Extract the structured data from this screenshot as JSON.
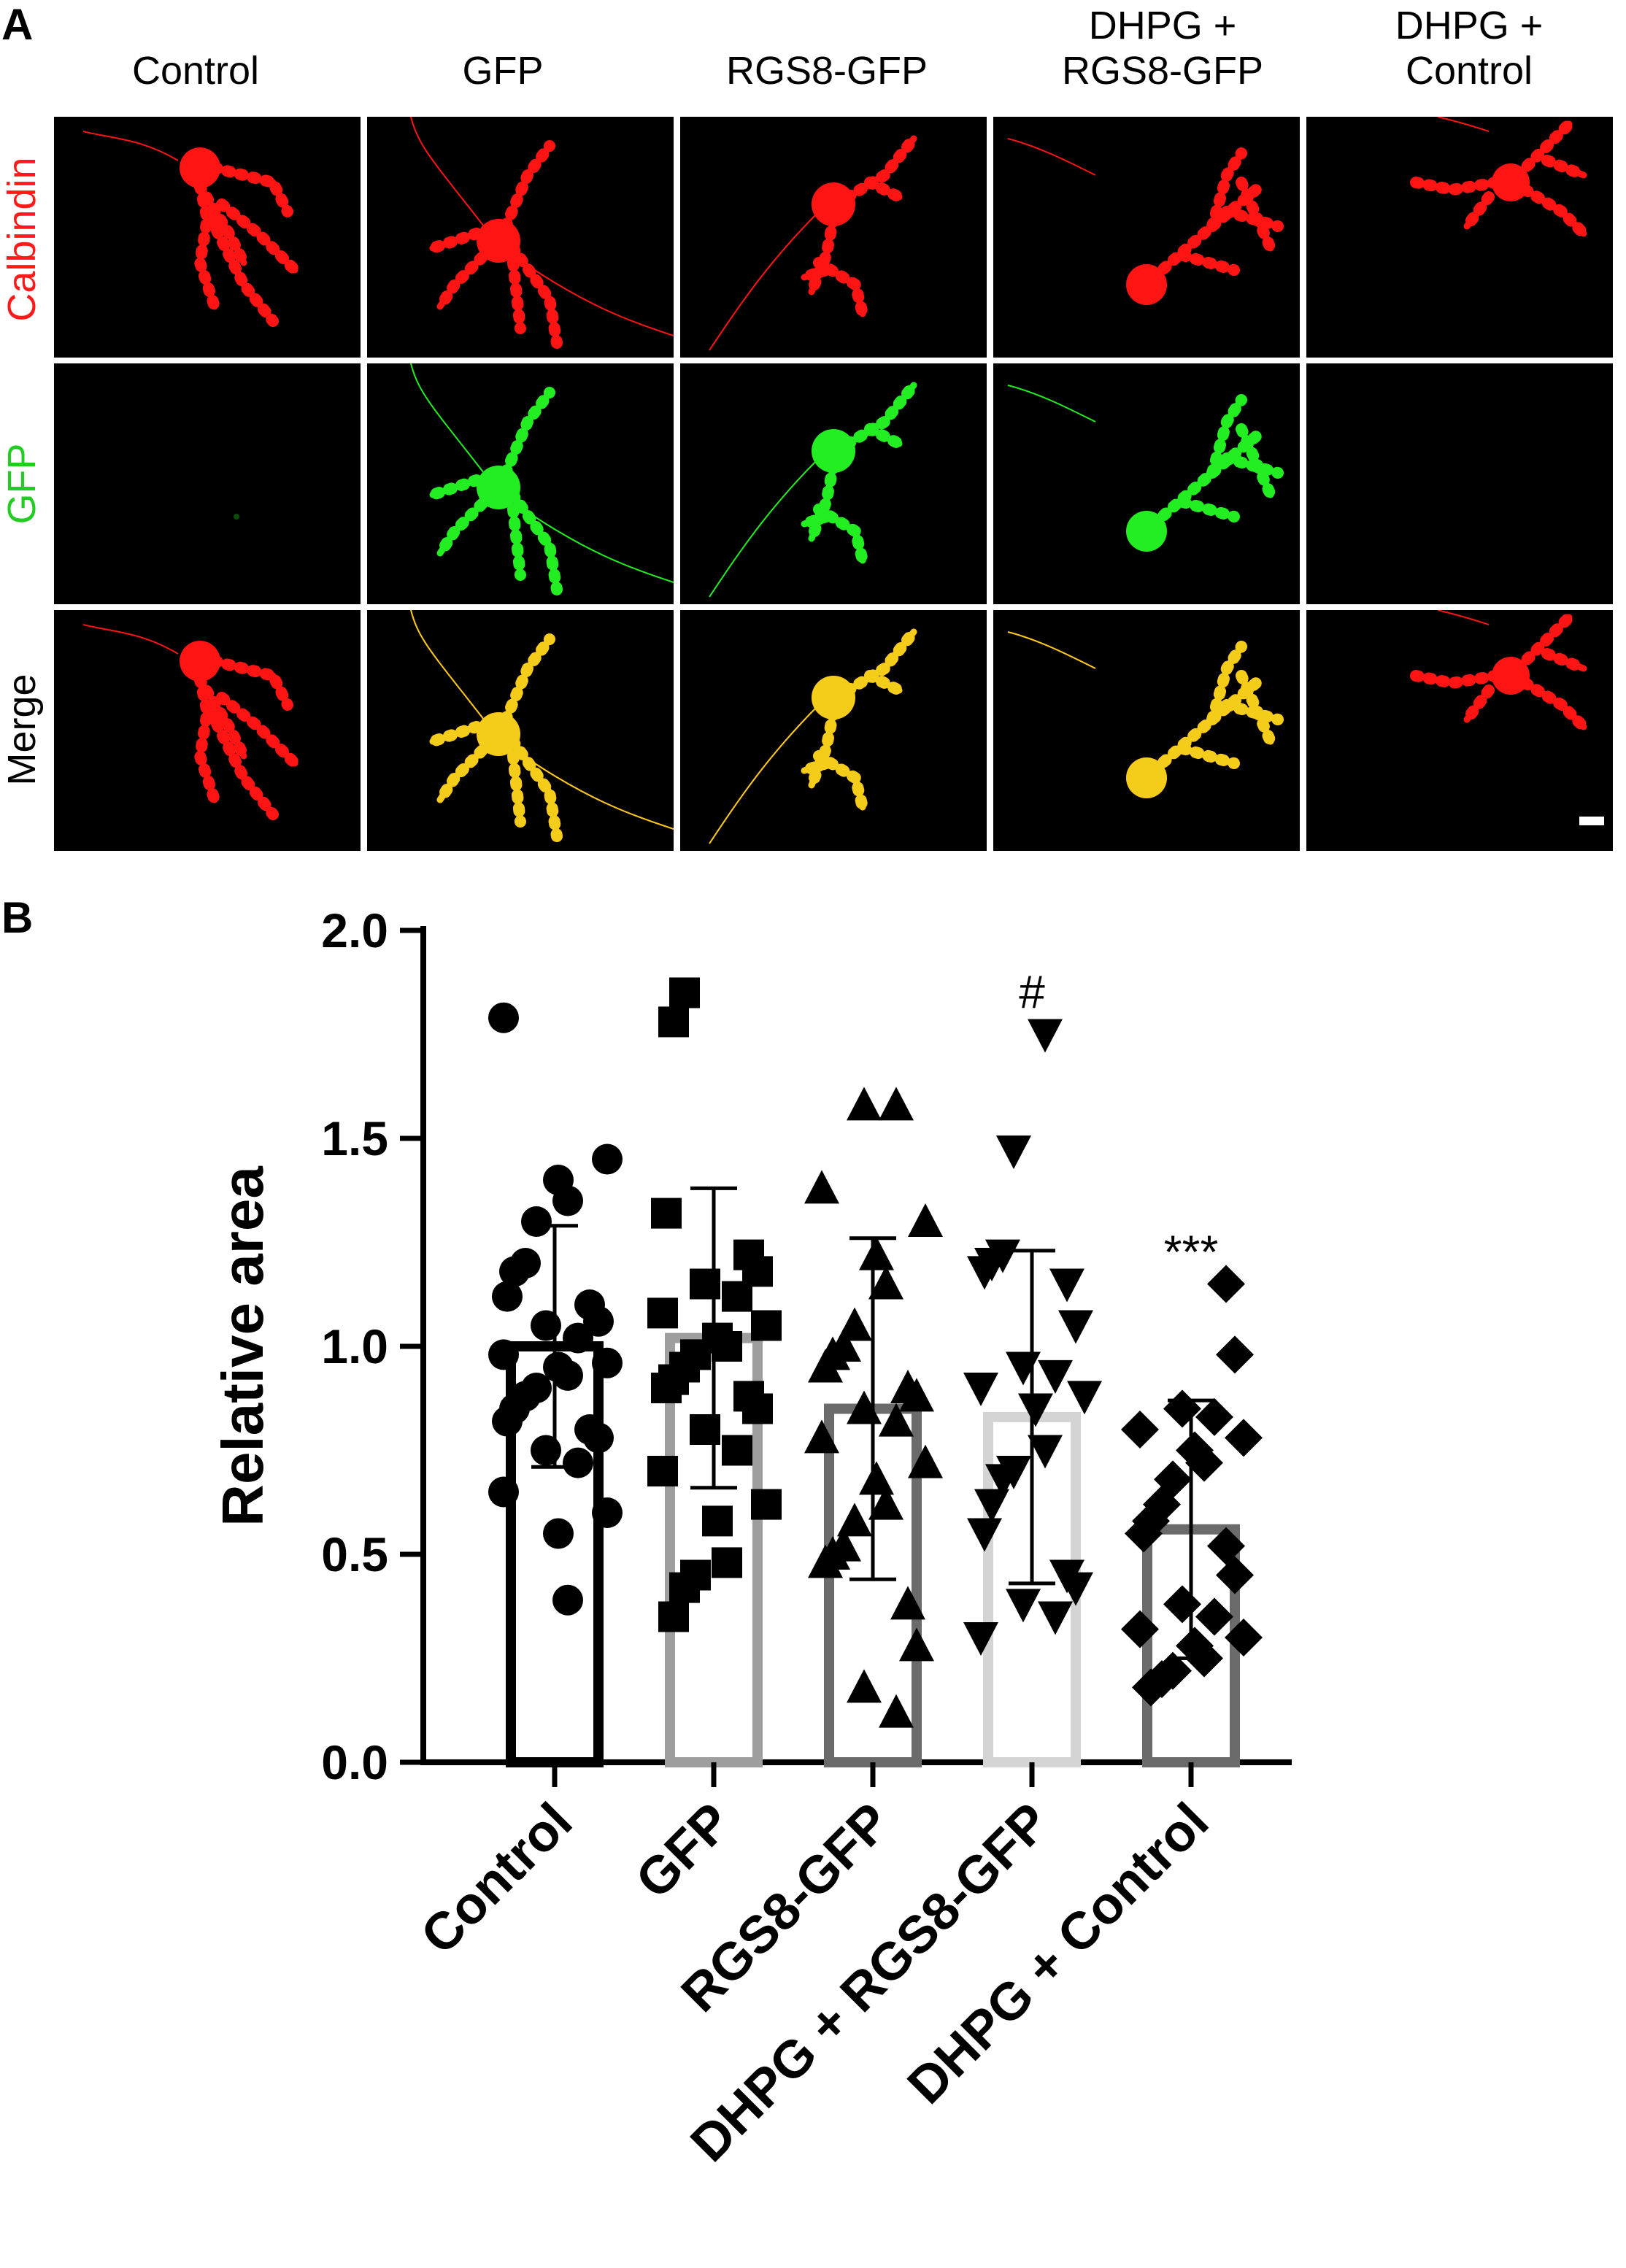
{
  "panel_a": {
    "letter": "A",
    "columns": [
      {
        "line1": "",
        "line2": "Control"
      },
      {
        "line1": "",
        "line2": "GFP"
      },
      {
        "line1": "",
        "line2": "RGS8-GFP"
      },
      {
        "line1": "DHPG +",
        "line2": "RGS8-GFP"
      },
      {
        "line1": "DHPG +",
        "line2": "Control"
      }
    ],
    "rows": [
      {
        "label": "Calbindin",
        "color": "#ff1a1a"
      },
      {
        "label": "GFP",
        "color": "#22cc22"
      },
      {
        "label": "Merge",
        "color": "#000000"
      }
    ],
    "channel_colors": {
      "calbindin": "#ff1414",
      "gfp": "#22ee22",
      "merge_yellow": "#f2e21a"
    }
  },
  "panel_b": {
    "letter": "B",
    "chart_data": {
      "type": "bar",
      "ylabel": "Relative area",
      "ylim": [
        0,
        2.0
      ],
      "yticks": [
        "0.0",
        "0.5",
        "1.0",
        "1.5",
        "2.0"
      ],
      "categories": [
        "Control",
        "GFP",
        "RGS8-GFP",
        "DHPG + RGS8-GFP",
        "DHPG + Control"
      ],
      "means": [
        1.0,
        1.02,
        0.85,
        0.83,
        0.56
      ],
      "sd": [
        0.29,
        0.36,
        0.41,
        0.4,
        0.31
      ],
      "bar_colors": [
        "#000000",
        "#9e9e9e",
        "#6b6b6b",
        "#d4d4d4",
        "#6b6b6b"
      ],
      "markers": [
        "circle",
        "square",
        "triangle-up",
        "triangle-down",
        "diamond"
      ],
      "significance": [
        "",
        "",
        "",
        "#",
        "***"
      ],
      "points": [
        [
          1.79,
          1.45,
          1.4,
          1.35,
          1.3,
          1.2,
          1.18,
          1.12,
          1.1,
          1.06,
          1.05,
          1.02,
          0.98,
          0.96,
          0.95,
          0.93,
          0.9,
          0.88,
          0.85,
          0.82,
          0.8,
          0.78,
          0.75,
          0.72,
          0.65,
          0.6,
          0.55,
          0.39
        ],
        [
          1.85,
          1.78,
          1.32,
          1.22,
          1.18,
          1.15,
          1.12,
          1.08,
          1.05,
          1.02,
          1.0,
          0.98,
          0.95,
          0.92,
          0.9,
          0.88,
          0.85,
          0.8,
          0.75,
          0.7,
          0.62,
          0.58,
          0.48,
          0.45,
          0.42,
          0.35
        ],
        [
          1.58,
          1.58,
          1.38,
          1.3,
          1.22,
          1.15,
          1.05,
          1.0,
          0.98,
          0.95,
          0.9,
          0.88,
          0.85,
          0.82,
          0.78,
          0.72,
          0.68,
          0.62,
          0.58,
          0.52,
          0.5,
          0.48,
          0.38,
          0.28,
          0.18,
          0.12
        ],
        [
          1.75,
          1.47,
          1.22,
          1.2,
          1.18,
          1.15,
          1.05,
          0.95,
          0.93,
          0.9,
          0.88,
          0.85,
          0.75,
          0.7,
          0.68,
          0.62,
          0.55,
          0.45,
          0.42,
          0.38,
          0.35,
          0.3
        ],
        [
          1.15,
          0.98,
          0.85,
          0.83,
          0.8,
          0.78,
          0.75,
          0.72,
          0.68,
          0.62,
          0.58,
          0.55,
          0.52,
          0.45,
          0.38,
          0.35,
          0.32,
          0.3,
          0.28,
          0.25,
          0.22,
          0.2,
          0.18
        ]
      ]
    }
  }
}
